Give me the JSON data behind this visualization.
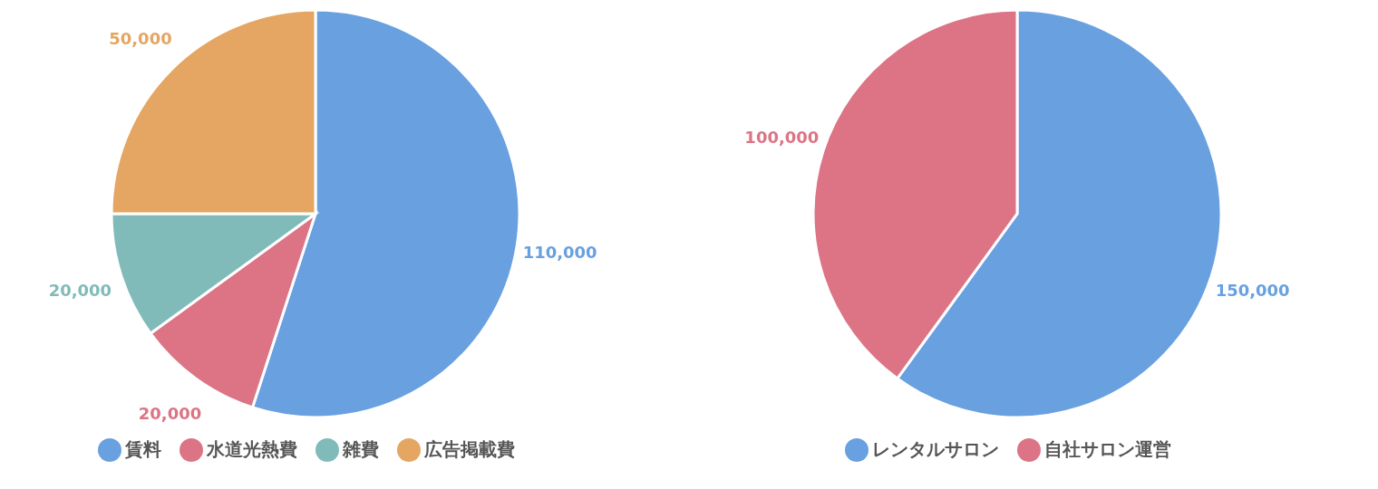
{
  "chart_data": [
    {
      "type": "pie",
      "categories": [
        "賃料",
        "水道光熱費",
        "雑費",
        "広告掲載費"
      ],
      "values": [
        110000,
        20000,
        20000,
        50000
      ],
      "value_labels": [
        "110,000",
        "20,000",
        "20,000",
        "50,000"
      ],
      "colors": [
        "#68a0e0",
        "#dc7485",
        "#80bbba",
        "#e4a662"
      ],
      "legend": "bottom"
    },
    {
      "type": "pie",
      "categories": [
        "レンタルサロン",
        "自社サロン運営"
      ],
      "values": [
        150000,
        100000
      ],
      "value_labels": [
        "150,000",
        "100,000"
      ],
      "colors": [
        "#68a0e0",
        "#dc7485"
      ],
      "legend": "bottom"
    }
  ]
}
